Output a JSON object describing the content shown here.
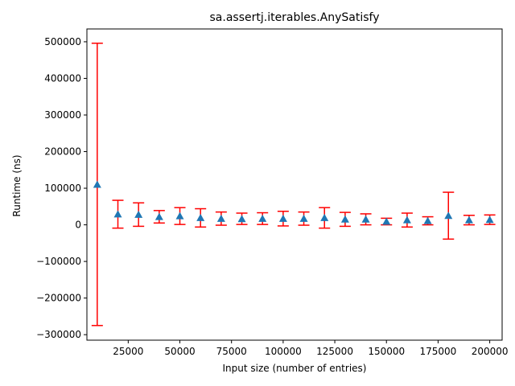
{
  "chart_data": {
    "type": "scatter",
    "title": "sa.assertj.iterables.AnySatisfy",
    "xlabel": "Input size (number of entries)",
    "ylabel": "Runtime (ns)",
    "xlim": [
      5000,
      206000
    ],
    "ylim": [
      -315000,
      535000
    ],
    "x_ticks": [
      25000,
      50000,
      75000,
      100000,
      125000,
      150000,
      175000,
      200000
    ],
    "y_ticks": [
      -300000,
      -200000,
      -100000,
      0,
      100000,
      200000,
      300000,
      400000,
      500000
    ],
    "grid": false,
    "legend": "none",
    "colors": {
      "marker": "#1f77b4",
      "errorbar": "#ff0000"
    },
    "marker": "triangle-up",
    "series": [
      {
        "points": [
          {
            "x": 10000,
            "y": 110000,
            "err_low": -275000,
            "err_high": 496000
          },
          {
            "x": 20000,
            "y": 29000,
            "err_low": -9000,
            "err_high": 67000
          },
          {
            "x": 30000,
            "y": 28000,
            "err_low": -4000,
            "err_high": 60000
          },
          {
            "x": 40000,
            "y": 22000,
            "err_low": 5000,
            "err_high": 39000
          },
          {
            "x": 50000,
            "y": 24000,
            "err_low": 1000,
            "err_high": 47000
          },
          {
            "x": 60000,
            "y": 19000,
            "err_low": -6000,
            "err_high": 44000
          },
          {
            "x": 70000,
            "y": 17000,
            "err_low": -1000,
            "err_high": 35000
          },
          {
            "x": 80000,
            "y": 16000,
            "err_low": 1000,
            "err_high": 32000
          },
          {
            "x": 90000,
            "y": 17000,
            "err_low": 1000,
            "err_high": 33000
          },
          {
            "x": 100000,
            "y": 17000,
            "err_low": -3000,
            "err_high": 37000
          },
          {
            "x": 110000,
            "y": 17000,
            "err_low": -1000,
            "err_high": 35000
          },
          {
            "x": 120000,
            "y": 19000,
            "err_low": -9000,
            "err_high": 47000
          },
          {
            "x": 130000,
            "y": 15000,
            "err_low": -4000,
            "err_high": 34000
          },
          {
            "x": 140000,
            "y": 15000,
            "err_low": 0,
            "err_high": 30000
          },
          {
            "x": 150000,
            "y": 9000,
            "err_low": 0,
            "err_high": 18000
          },
          {
            "x": 160000,
            "y": 13000,
            "err_low": -6000,
            "err_high": 32000
          },
          {
            "x": 170000,
            "y": 11000,
            "err_low": 0,
            "err_high": 22000
          },
          {
            "x": 180000,
            "y": 25000,
            "err_low": -39000,
            "err_high": 89000
          },
          {
            "x": 190000,
            "y": 13000,
            "err_low": 0,
            "err_high": 26000
          },
          {
            "x": 200000,
            "y": 14000,
            "err_low": 1000,
            "err_high": 27000
          }
        ]
      }
    ]
  }
}
